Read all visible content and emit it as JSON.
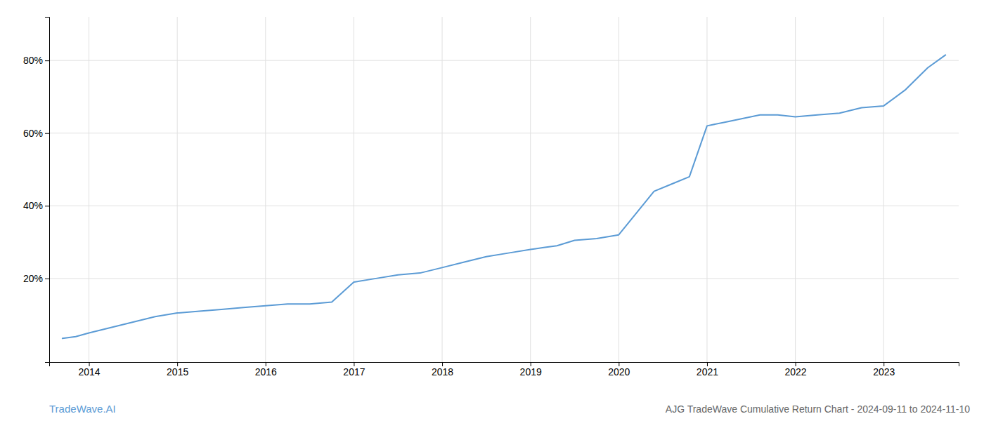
{
  "chart_data": {
    "type": "line",
    "title": "AJG TradeWave Cumulative Return Chart - 2024-09-11 to 2024-11-10",
    "subtitle": "TradeWave.AI",
    "x": [
      2013.7,
      2013.85,
      2014.0,
      2014.25,
      2014.5,
      2014.75,
      2015.0,
      2015.25,
      2015.5,
      2015.75,
      2016.0,
      2016.25,
      2016.5,
      2016.75,
      2017.0,
      2017.25,
      2017.5,
      2017.75,
      2018.0,
      2018.25,
      2018.5,
      2018.75,
      2019.0,
      2019.15,
      2019.3,
      2019.5,
      2019.75,
      2020.0,
      2020.2,
      2020.4,
      2020.6,
      2020.8,
      2021.0,
      2021.2,
      2021.4,
      2021.6,
      2021.8,
      2022.0,
      2022.25,
      2022.5,
      2022.75,
      2023.0,
      2023.25,
      2023.5,
      2023.7
    ],
    "values": [
      3.5,
      4.0,
      5.0,
      6.5,
      8.0,
      9.5,
      10.5,
      11.0,
      11.5,
      12.0,
      12.5,
      13.0,
      13.0,
      13.5,
      19.0,
      20.0,
      21.0,
      21.5,
      23.0,
      24.5,
      26.0,
      27.0,
      28.0,
      28.5,
      29.0,
      30.5,
      31.0,
      32.0,
      38.0,
      44.0,
      46.0,
      48.0,
      62.0,
      63.0,
      64.0,
      65.0,
      65.0,
      64.5,
      65.0,
      65.5,
      67.0,
      67.5,
      72.0,
      78.0,
      81.5
    ],
    "color": "#5b9bd5",
    "xlim": [
      2013.55,
      2023.85
    ],
    "xticks": [
      2014,
      2015,
      2016,
      2017,
      2018,
      2019,
      2020,
      2021,
      2022,
      2023
    ],
    "ylim": [
      -3,
      92
    ],
    "yticks": [
      {
        "value": 20,
        "label": "20%"
      },
      {
        "value": 40,
        "label": "40%"
      },
      {
        "value": 60,
        "label": "60%"
      },
      {
        "value": 80,
        "label": "80%"
      }
    ],
    "grid": true
  }
}
